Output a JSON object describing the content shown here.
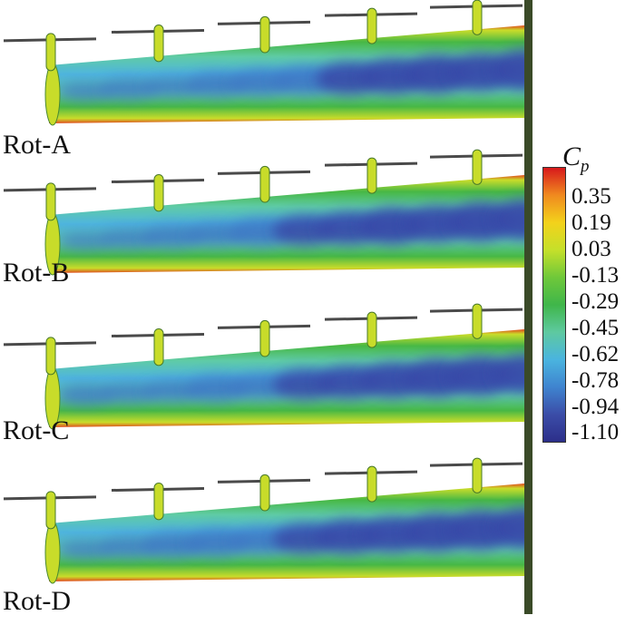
{
  "panels": [
    {
      "label": "Rot-A",
      "pattern": [
        0.5,
        0.6,
        0.55,
        0.7,
        0.75,
        0.8,
        0.9,
        0.95,
        1.0,
        0.95,
        1.0
      ]
    },
    {
      "label": "Rot-B",
      "pattern": [
        0.45,
        0.55,
        0.65,
        0.65,
        0.8,
        0.85,
        0.9,
        1.0,
        0.95,
        1.0,
        1.0
      ]
    },
    {
      "label": "Rot-C",
      "pattern": [
        0.6,
        0.55,
        0.6,
        0.75,
        0.7,
        0.85,
        0.9,
        0.95,
        1.0,
        1.0,
        0.95
      ]
    },
    {
      "label": "Rot-D",
      "pattern": [
        0.5,
        0.6,
        0.75,
        0.8,
        0.75,
        0.85,
        0.95,
        0.95,
        1.0,
        1.0,
        1.0
      ]
    }
  ],
  "legend": {
    "title_main": "C",
    "title_sub": "p",
    "ticks": [
      "0.35",
      "0.19",
      "0.03",
      "-0.13",
      "-0.29",
      "-0.45",
      "-0.62",
      "-0.78",
      "-0.94",
      "-1.10"
    ],
    "colors": [
      "#d7191c",
      "#f08a1f",
      "#f3d21b",
      "#c5e02a",
      "#6fc83a",
      "#3fb64a",
      "#5ec9a0",
      "#4ab4df",
      "#3f84cf",
      "#3b4da8",
      "#2c2f8a"
    ]
  }
}
